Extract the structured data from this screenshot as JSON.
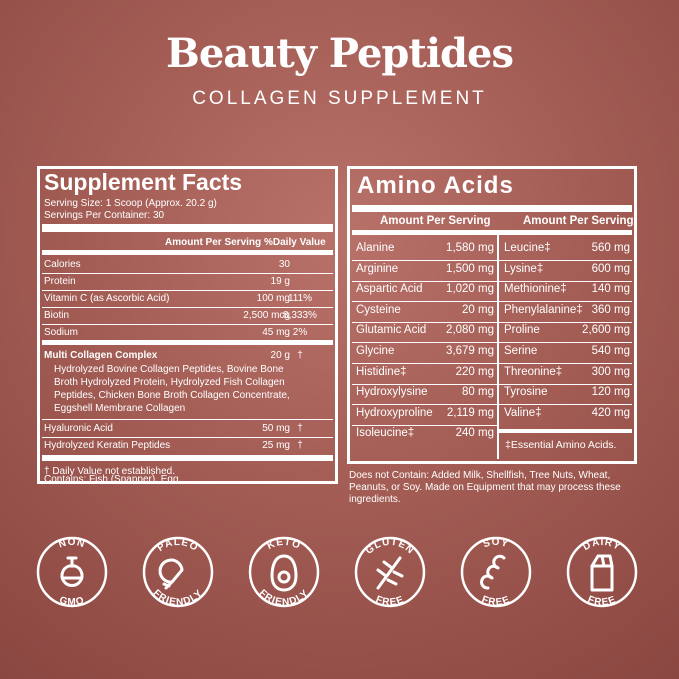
{
  "header": {
    "title": "Beauty Peptides",
    "subtitle": "COLLAGEN SUPPLEMENT"
  },
  "supplement_facts": {
    "title": "Supplement Facts",
    "serving_size": "Serving Size: 1 Scoop (Approx. 20.2 g)",
    "servings": "Servings Per Container: 30",
    "columns": [
      "Amount Per Serving",
      "%Daily Value"
    ],
    "rows": [
      {
        "name": "Calories",
        "amount": "30"
      },
      {
        "name": "Protein",
        "amount": "19 g"
      },
      {
        "name": "Vitamin C (as Ascorbic Acid)",
        "amount": "100 mg",
        "dv": "111%"
      },
      {
        "name": "Biotin",
        "amount": "2,500 mcg",
        "dv": "8,333%"
      },
      {
        "name": "Sodium",
        "amount": "45 mg",
        "dv": "2%"
      }
    ],
    "complex": {
      "name": "Multi Collagen Complex",
      "amount": "20 g",
      "dv": "†",
      "description": "Hydrolyzed Bovine Collagen Peptides, Bovine Bone Broth Hydrolyzed Protein, Hydrolyzed Fish Collagen Peptides, Chicken Bone Broth Collagen Concentrate, Eggshell Membrane Collagen"
    },
    "extra_rows": [
      {
        "name": "Hyaluronic Acid",
        "amount": "50 mg",
        "dv": "†"
      },
      {
        "name": "Hydrolyzed Keratin Peptides",
        "amount": "25 mg",
        "dv": "†"
      }
    ],
    "footnote": "† Daily Value not established.",
    "contains": "Contains: Fish (Snapper), Egg."
  },
  "amino_acids": {
    "title": "Amino Acids",
    "columns": [
      "Amount Per Serving",
      "Amount Per Serving"
    ],
    "left": [
      {
        "name": "Alanine",
        "amount": "1,580 mg"
      },
      {
        "name": "Arginine",
        "amount": "1,500 mg"
      },
      {
        "name": "Aspartic Acid",
        "amount": "1,020 mg"
      },
      {
        "name": "Cysteine",
        "amount": "20 mg"
      },
      {
        "name": "Glutamic Acid",
        "amount": "2,080 mg"
      },
      {
        "name": "Glycine",
        "amount": "3,679 mg"
      },
      {
        "name": "Histidine‡",
        "amount": "220 mg"
      },
      {
        "name": "Hydroxylysine",
        "amount": "80 mg"
      },
      {
        "name": "Hydroxyproline",
        "amount": "2,119 mg"
      },
      {
        "name": "Isoleucine‡",
        "amount": "240 mg"
      }
    ],
    "right": [
      {
        "name": "Leucine‡",
        "amount": "560 mg"
      },
      {
        "name": "Lysine‡",
        "amount": "600 mg"
      },
      {
        "name": "Methionine‡",
        "amount": "140 mg"
      },
      {
        "name": "Phenylalanine‡",
        "amount": "360 mg"
      },
      {
        "name": "Proline",
        "amount": "2,600 mg"
      },
      {
        "name": "Serine",
        "amount": "540 mg"
      },
      {
        "name": "Threonine‡",
        "amount": "300 mg"
      },
      {
        "name": "Tyrosine",
        "amount": "120 mg"
      },
      {
        "name": "Valine‡",
        "amount": "420 mg"
      }
    ],
    "footnote": "‡Essential Amino Acids.",
    "disclaimer": "Does not Contain: Added Milk, Shellfish, Tree Nuts, Wheat, Peanuts, or Soy. Made on Equipment that may process these ingredients."
  },
  "badges": [
    {
      "top": "NON",
      "bottom": "GMO"
    },
    {
      "top": "PALEO",
      "bottom": "FRIENDLY"
    },
    {
      "top": "KETO",
      "bottom": "FRIENDLY"
    },
    {
      "top": "GLUTEN",
      "bottom": "FREE"
    },
    {
      "top": "SOY",
      "bottom": "FREE"
    },
    {
      "top": "DAIRY",
      "bottom": "FREE"
    }
  ]
}
